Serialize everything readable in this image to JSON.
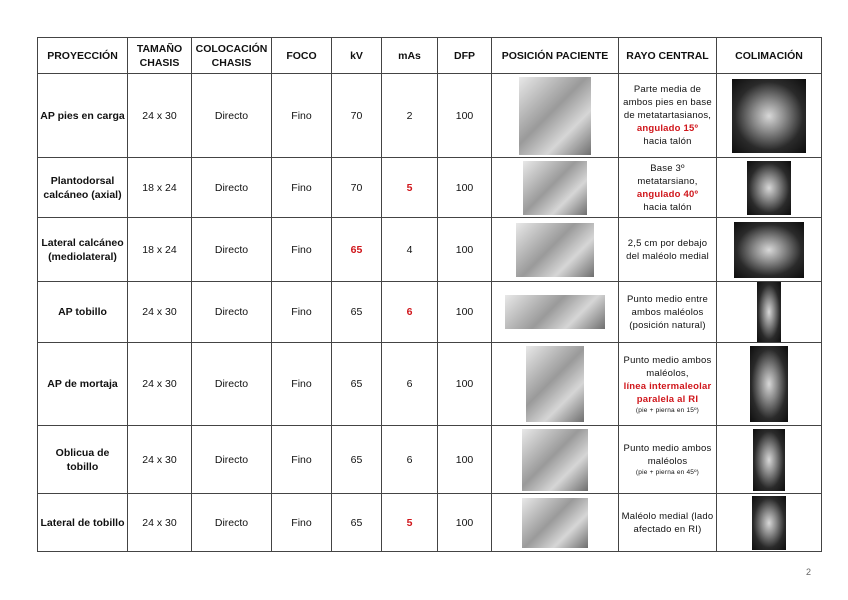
{
  "headers": [
    "PROYECCIÓN",
    "TAMAÑO CHASIS",
    "COLOCACIÓN CHASIS",
    "FOCO",
    "kV",
    "mAs",
    "DFP",
    "POSICIÓN PACIENTE",
    "RAYO CENTRAL",
    "COLIMACIÓN"
  ],
  "accent_color": "#d0161b",
  "rows": [
    {
      "proyeccion": "AP pies en carga",
      "chasis": "24 x 30",
      "colocacion": "Directo",
      "foco": "Fino",
      "kv": "70",
      "kv_red": false,
      "mas": "2",
      "mas_red": false,
      "dfp": "100",
      "rayo": [
        {
          "t": "Parte media de ambos pies en base de metatartasianos,",
          "s": "n"
        },
        {
          "t": "angulado 15º",
          "s": "red"
        },
        {
          "t": "hacia talón",
          "s": "n"
        }
      ]
    },
    {
      "proyeccion": "Plantodorsal calcáneo (axial)",
      "chasis": "18 x 24",
      "colocacion": "Directo",
      "foco": "Fino",
      "kv": "70",
      "kv_red": false,
      "mas": "5",
      "mas_red": true,
      "dfp": "100",
      "rayo": [
        {
          "t": "Base 3º metatarsiano,",
          "s": "n"
        },
        {
          "t": "angulado 40º",
          "s": "red"
        },
        {
          "t": "hacia talón",
          "s": "n"
        }
      ]
    },
    {
      "proyeccion": "Lateral calcáneo (mediolateral)",
      "chasis": "18 x 24",
      "colocacion": "Directo",
      "foco": "Fino",
      "kv": "65",
      "kv_red": true,
      "mas": "4",
      "mas_red": false,
      "dfp": "100",
      "rayo": [
        {
          "t": "2,5 cm por debajo del maléolo medial",
          "s": "n"
        }
      ]
    },
    {
      "proyeccion": "AP tobillo",
      "chasis": "24 x 30",
      "colocacion": "Directo",
      "foco": "Fino",
      "kv": "65",
      "kv_red": false,
      "mas": "6",
      "mas_red": true,
      "dfp": "100",
      "rayo": [
        {
          "t": "Punto medio entre ambos maléolos (posición natural)",
          "s": "n"
        }
      ]
    },
    {
      "proyeccion": "AP de mortaja",
      "chasis": "24 x 30",
      "colocacion": "Directo",
      "foco": "Fino",
      "kv": "65",
      "kv_red": false,
      "mas": "6",
      "mas_red": false,
      "dfp": "100",
      "rayo": [
        {
          "t": "Punto medio ambos maléolos,",
          "s": "n"
        },
        {
          "t": "línea intermaleolar paralela al RI",
          "s": "red"
        },
        {
          "t": "(pie + pierna en 15º)",
          "s": "tiny"
        }
      ]
    },
    {
      "proyeccion": "Oblicua de tobillo",
      "chasis": "24 x 30",
      "colocacion": "Directo",
      "foco": "Fino",
      "kv": "65",
      "kv_red": false,
      "mas": "6",
      "mas_red": false,
      "dfp": "100",
      "rayo": [
        {
          "t": "Punto medio ambos maléolos",
          "s": "n"
        },
        {
          "t": "(pie + pierna en 45º)",
          "s": "tiny"
        }
      ]
    },
    {
      "proyeccion": "Lateral de tobillo",
      "chasis": "24 x 30",
      "colocacion": "Directo",
      "foco": "Fino",
      "kv": "65",
      "kv_red": false,
      "mas": "5",
      "mas_red": true,
      "dfp": "100",
      "rayo": [
        {
          "t": "Maléolo medial (lado afectado en RI)",
          "s": "n"
        }
      ]
    }
  ],
  "page_number": "2"
}
